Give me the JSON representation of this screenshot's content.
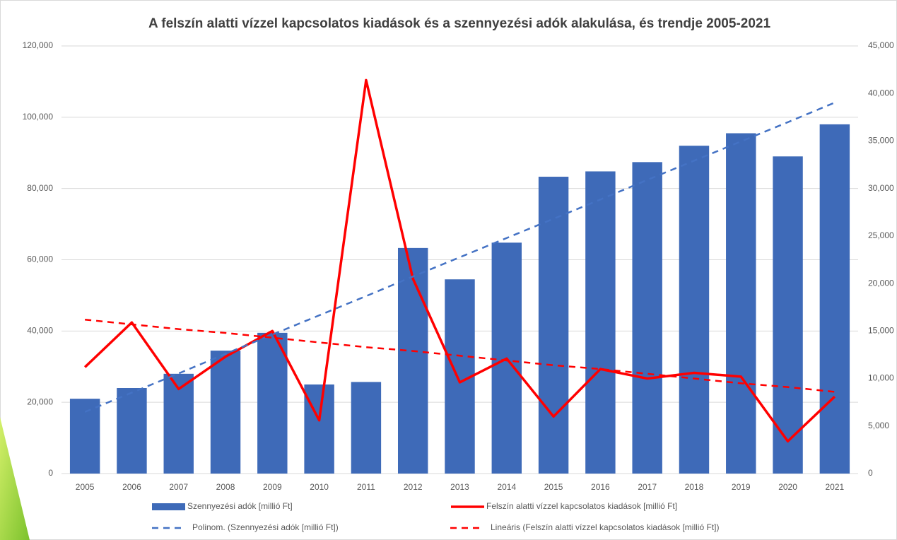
{
  "chart_data": {
    "type": "bar",
    "title": "A felszín alatti vízzel kapcsolatos kiadások és a szennyezési adók alakulása, és trendje 2005-2021",
    "categories": [
      "2005",
      "2006",
      "2007",
      "2008",
      "2009",
      "2010",
      "2011",
      "2012",
      "2013",
      "2014",
      "2015",
      "2016",
      "2017",
      "2018",
      "2019",
      "2020",
      "2021"
    ],
    "series": [
      {
        "name": "Szennyezési adók [millió Ft]",
        "type": "bar",
        "color": "#3e6ab8",
        "axis": "y",
        "values": [
          21000,
          24000,
          28000,
          34500,
          39500,
          25000,
          25700,
          63300,
          54500,
          64800,
          83300,
          84800,
          87400,
          92000,
          95500,
          89000,
          98000
        ]
      },
      {
        "name": "Felszín alatti vízzel kapcsolatos kiadások [millió Ft]",
        "type": "line",
        "color": "#ff0000",
        "axis": "y2",
        "dashed": false,
        "values": [
          11200,
          15900,
          8900,
          12300,
          15000,
          5600,
          41400,
          20500,
          9600,
          12100,
          6000,
          11000,
          10000,
          10600,
          10200,
          3400,
          8100
        ]
      },
      {
        "name": "Polinom. (Szennyezési adók [millió Ft])",
        "type": "line",
        "color": "#4472c4",
        "axis": "y",
        "dashed": true,
        "values": [
          17300,
          22700,
          28100,
          33600,
          39000,
          44400,
          49800,
          55300,
          60700,
          66100,
          71500,
          76900,
          82400,
          87800,
          93200,
          98600,
          104100
        ]
      },
      {
        "name": "Lineáris (Felszín alatti vízzel kapcsolatos kiadások [millió Ft])",
        "type": "line",
        "color": "#ff0000",
        "axis": "y2",
        "dashed": true,
        "values": [
          16200,
          15700,
          15200,
          14800,
          14300,
          13800,
          13300,
          12900,
          12400,
          11900,
          11400,
          11000,
          10500,
          10000,
          9500,
          9100,
          8600
        ]
      }
    ],
    "ylim": [
      0,
      120000
    ],
    "yticks": [
      0,
      {
        "value": 20000,
        "label": "20,000"
      },
      {
        "value": 40000,
        "label": "40,000"
      },
      {
        "value": 60000,
        "label": "60,000"
      },
      {
        "value": 80000,
        "label": "80,000"
      },
      {
        "value": 100000,
        "label": "100,000"
      },
      {
        "value": 120000,
        "label": "120,000"
      }
    ],
    "y2lim": [
      0,
      45000
    ],
    "y2ticks": [
      0,
      {
        "value": 5000,
        "label": "5,000"
      },
      {
        "value": 10000,
        "label": "10,000"
      },
      {
        "value": 15000,
        "label": "15,000"
      },
      {
        "value": 20000,
        "label": "20,000"
      },
      {
        "value": 25000,
        "label": "25,000"
      },
      {
        "value": 30000,
        "label": "30,000"
      },
      {
        "value": 35000,
        "label": "35,000"
      },
      {
        "value": 40000,
        "label": "40,000"
      },
      {
        "value": 45000,
        "label": "45,000"
      }
    ],
    "grid": true,
    "legend": "bottom"
  }
}
